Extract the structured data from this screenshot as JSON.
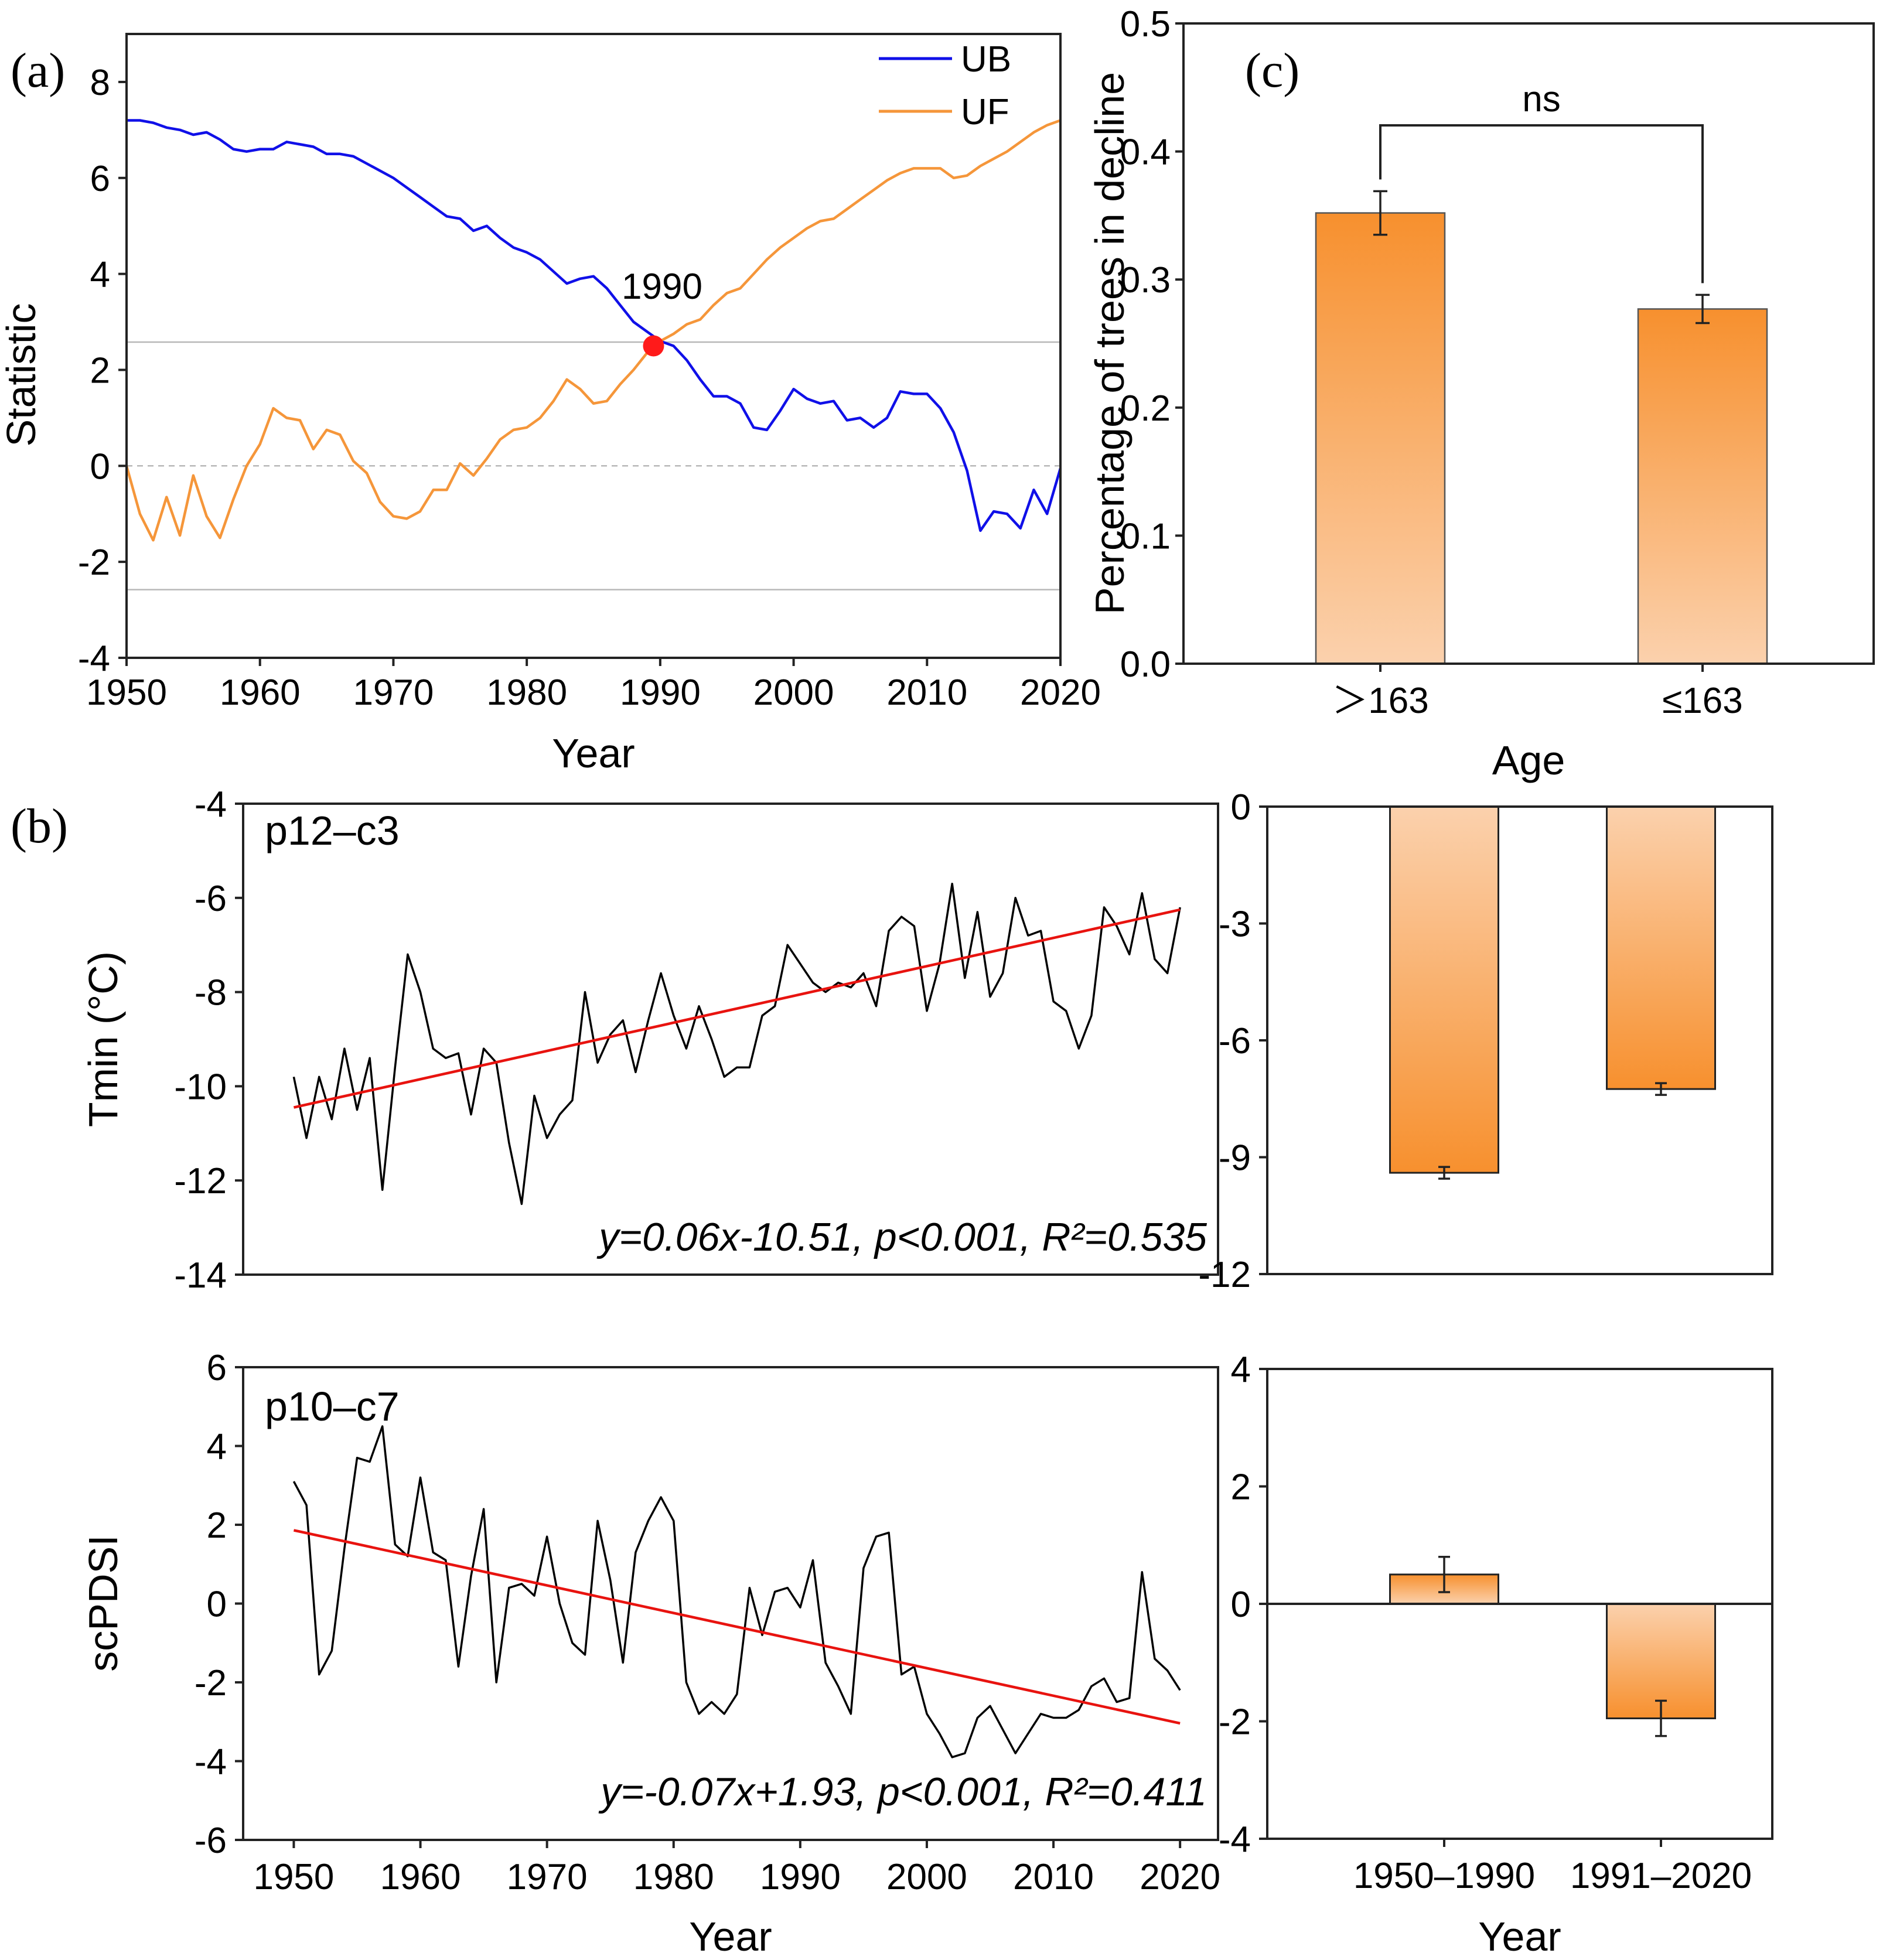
{
  "colors": {
    "ub": "#1010e8",
    "uf": "#f5963a",
    "trend": "#e8130f",
    "series": "#000000",
    "point": "#ff1a1a",
    "bar_dark": "#f7902e",
    "bar_light": "#fbd1ad"
  },
  "chart_data": [
    {
      "id": "a",
      "type": "line",
      "panel_label": "(a)",
      "xlabel": "Year",
      "ylabel": "Statistic",
      "xlim": [
        1950,
        2020
      ],
      "ylim": [
        -4,
        9
      ],
      "xticks": [
        1950,
        1960,
        1970,
        1980,
        1990,
        2000,
        2010,
        2020
      ],
      "yticks": [
        -4,
        -2,
        0,
        2,
        4,
        6,
        8
      ],
      "reference_lines": [
        2.58,
        0,
        -2.58
      ],
      "legend_position": "top-right",
      "annotation": {
        "text": "1990",
        "x": 1989.5,
        "y": 2.5
      },
      "series": [
        {
          "name": "UB",
          "x": [
            1950,
            1951,
            1952,
            1953,
            1954,
            1955,
            1956,
            1957,
            1958,
            1959,
            1960,
            1961,
            1962,
            1963,
            1964,
            1965,
            1966,
            1967,
            1968,
            1969,
            1970,
            1971,
            1972,
            1973,
            1974,
            1975,
            1976,
            1977,
            1978,
            1979,
            1980,
            1981,
            1982,
            1983,
            1984,
            1985,
            1986,
            1987,
            1988,
            1989,
            1990,
            1991,
            1992,
            1993,
            1994,
            1995,
            1996,
            1997,
            1998,
            1999,
            2000,
            2001,
            2002,
            2003,
            2004,
            2005,
            2006,
            2007,
            2008,
            2009,
            2010,
            2011,
            2012,
            2013,
            2014,
            2015,
            2016,
            2017,
            2018,
            2019,
            2020
          ],
          "values": [
            7.2,
            7.2,
            7.15,
            7.05,
            7.0,
            6.9,
            6.95,
            6.8,
            6.6,
            6.55,
            6.6,
            6.6,
            6.75,
            6.7,
            6.65,
            6.5,
            6.5,
            6.45,
            6.3,
            6.15,
            6.0,
            5.8,
            5.6,
            5.4,
            5.2,
            5.15,
            4.9,
            5.0,
            4.75,
            4.55,
            4.45,
            4.3,
            4.05,
            3.8,
            3.9,
            3.95,
            3.7,
            3.35,
            3.0,
            2.8,
            2.6,
            2.5,
            2.2,
            1.8,
            1.45,
            1.45,
            1.3,
            0.8,
            0.75,
            1.15,
            1.6,
            1.4,
            1.3,
            1.35,
            0.95,
            1.0,
            0.8,
            1.0,
            1.55,
            1.5,
            1.5,
            1.2,
            0.7,
            -0.1,
            -1.35,
            -0.95,
            -1.0,
            -1.3,
            -0.5,
            -1.0,
            -0.05
          ]
        },
        {
          "name": "UF",
          "x": [
            1950,
            1951,
            1952,
            1953,
            1954,
            1955,
            1956,
            1957,
            1958,
            1959,
            1960,
            1961,
            1962,
            1963,
            1964,
            1965,
            1966,
            1967,
            1968,
            1969,
            1970,
            1971,
            1972,
            1973,
            1974,
            1975,
            1976,
            1977,
            1978,
            1979,
            1980,
            1981,
            1982,
            1983,
            1984,
            1985,
            1986,
            1987,
            1988,
            1989,
            1990,
            1991,
            1992,
            1993,
            1994,
            1995,
            1996,
            1997,
            1998,
            1999,
            2000,
            2001,
            2002,
            2003,
            2004,
            2005,
            2006,
            2007,
            2008,
            2009,
            2010,
            2011,
            2012,
            2013,
            2014,
            2015,
            2016,
            2017,
            2018,
            2019,
            2020
          ],
          "values": [
            0,
            -1.0,
            -1.55,
            -0.65,
            -1.45,
            -0.2,
            -1.05,
            -1.5,
            -0.7,
            0.0,
            0.45,
            1.2,
            1.0,
            0.95,
            0.35,
            0.75,
            0.65,
            0.1,
            -0.15,
            -0.75,
            -1.05,
            -1.1,
            -0.95,
            -0.5,
            -0.5,
            0.05,
            -0.2,
            0.15,
            0.55,
            0.75,
            0.8,
            1.0,
            1.35,
            1.8,
            1.6,
            1.3,
            1.35,
            1.7,
            2.0,
            2.35,
            2.6,
            2.75,
            2.95,
            3.05,
            3.35,
            3.6,
            3.7,
            4.0,
            4.3,
            4.55,
            4.75,
            4.95,
            5.1,
            5.15,
            5.35,
            5.55,
            5.75,
            5.95,
            6.1,
            6.2,
            6.2,
            6.2,
            6.0,
            6.05,
            6.25,
            6.4,
            6.55,
            6.75,
            6.95,
            7.1,
            7.2
          ]
        }
      ]
    },
    {
      "id": "b-tmin",
      "type": "line",
      "panel_label": "(b)",
      "subplot_label": "p12–c3",
      "xlabel": "",
      "ylabel": "Tmin (°C)",
      "xlim": [
        1946,
        2023
      ],
      "ylim": [
        -14,
        -4
      ],
      "yticks": [
        -14,
        -12,
        -10,
        -8,
        -6,
        -4
      ],
      "trend_text": "y=0.06x-10.51, p<0.001, R²=0.535",
      "trend": {
        "slope": 0.06,
        "intercept": -10.51,
        "x_start": 1950,
        "x_end": 2020
      },
      "series": [
        {
          "name": "Tmin",
          "x": [
            1950,
            1951,
            1952,
            1953,
            1954,
            1955,
            1956,
            1957,
            1958,
            1959,
            1960,
            1961,
            1962,
            1963,
            1964,
            1965,
            1966,
            1967,
            1968,
            1969,
            1970,
            1971,
            1972,
            1973,
            1974,
            1975,
            1976,
            1977,
            1978,
            1979,
            1980,
            1981,
            1982,
            1983,
            1984,
            1985,
            1986,
            1987,
            1988,
            1989,
            1990,
            1991,
            1992,
            1993,
            1994,
            1995,
            1996,
            1997,
            1998,
            1999,
            2000,
            2001,
            2002,
            2003,
            2004,
            2005,
            2006,
            2007,
            2008,
            2009,
            2010,
            2011,
            2012,
            2013,
            2014,
            2015,
            2016,
            2017,
            2018,
            2019,
            2020
          ],
          "values": [
            -9.8,
            -11.1,
            -9.8,
            -10.7,
            -9.2,
            -10.5,
            -9.4,
            -12.2,
            -9.6,
            -7.2,
            -8.0,
            -9.2,
            -9.4,
            -9.3,
            -10.6,
            -9.2,
            -9.5,
            -11.2,
            -12.5,
            -10.2,
            -11.1,
            -10.6,
            -10.3,
            -8.0,
            -9.5,
            -8.9,
            -8.6,
            -9.7,
            -8.6,
            -7.6,
            -8.5,
            -9.2,
            -8.3,
            -9.0,
            -9.8,
            -9.6,
            -9.6,
            -8.5,
            -8.3,
            -7.0,
            -7.4,
            -7.8,
            -8.0,
            -7.8,
            -7.9,
            -7.6,
            -8.3,
            -6.7,
            -6.4,
            -6.6,
            -8.4,
            -7.4,
            -5.7,
            -7.7,
            -6.3,
            -8.1,
            -7.6,
            -6.0,
            -6.8,
            -6.7,
            -8.2,
            -8.4,
            -9.2,
            -8.5,
            -6.2,
            -6.6,
            -7.2,
            -5.9,
            -7.3,
            -7.6,
            -6.2
          ]
        }
      ]
    },
    {
      "id": "b-scpdsi",
      "type": "line",
      "subplot_label": "p10–c7",
      "xlabel": "Year",
      "ylabel": "scPDSI",
      "xlim": [
        1946,
        2023
      ],
      "ylim": [
        -6,
        6
      ],
      "xticks": [
        1950,
        1960,
        1970,
        1980,
        1990,
        2000,
        2010,
        2020
      ],
      "yticks": [
        -6,
        -4,
        -2,
        0,
        2,
        4,
        6
      ],
      "trend_text": "y=-0.07x+1.93, p<0.001, R²=0.411",
      "trend": {
        "slope": -0.07,
        "intercept": 1.93,
        "x_start": 1950,
        "x_end": 2020
      },
      "series": [
        {
          "name": "scPDSI",
          "x": [
            1950,
            1951,
            1952,
            1953,
            1954,
            1955,
            1956,
            1957,
            1958,
            1959,
            1960,
            1961,
            1962,
            1963,
            1964,
            1965,
            1966,
            1967,
            1968,
            1969,
            1970,
            1971,
            1972,
            1973,
            1974,
            1975,
            1976,
            1977,
            1978,
            1979,
            1980,
            1981,
            1982,
            1983,
            1984,
            1985,
            1986,
            1987,
            1988,
            1989,
            1990,
            1991,
            1992,
            1993,
            1994,
            1995,
            1996,
            1997,
            1998,
            1999,
            2000,
            2001,
            2002,
            2003,
            2004,
            2005,
            2006,
            2007,
            2008,
            2009,
            2010,
            2011,
            2012,
            2013,
            2014,
            2015,
            2016,
            2017,
            2018,
            2019,
            2020
          ],
          "values": [
            3.1,
            2.5,
            -1.8,
            -1.2,
            1.4,
            3.7,
            3.6,
            4.5,
            1.5,
            1.2,
            3.2,
            1.3,
            1.1,
            -1.6,
            0.7,
            2.4,
            -2.0,
            0.4,
            0.5,
            0.2,
            1.7,
            0.0,
            -1.0,
            -1.3,
            2.1,
            0.6,
            -1.5,
            1.3,
            2.1,
            2.7,
            2.1,
            -2.0,
            -2.8,
            -2.5,
            -2.8,
            -2.3,
            0.4,
            -0.8,
            0.3,
            0.4,
            -0.1,
            1.1,
            -1.5,
            -2.1,
            -2.8,
            0.9,
            1.7,
            1.8,
            -1.8,
            -1.6,
            -2.8,
            -3.3,
            -3.9,
            -3.8,
            -2.9,
            -2.6,
            -3.2,
            -3.8,
            -3.3,
            -2.8,
            -2.9,
            -2.9,
            -2.7,
            -2.1,
            -1.9,
            -2.5,
            -2.4,
            0.8,
            -1.4,
            -1.7,
            -2.2
          ]
        }
      ]
    },
    {
      "id": "b-tmin-bars",
      "type": "bar",
      "xlabel": "",
      "ylabel": "",
      "ylim": [
        -12,
        0
      ],
      "yticks": [
        -12,
        -9,
        -6,
        -3,
        0
      ],
      "categories": [
        "1950–1990",
        "1991–2020"
      ],
      "values": [
        -9.4,
        -7.25
      ],
      "errors": [
        0.15,
        0.15
      ]
    },
    {
      "id": "b-scpdsi-bars",
      "type": "bar",
      "xlabel": "Year",
      "ylabel": "",
      "ylim": [
        -4,
        4
      ],
      "yticks": [
        -4,
        -2,
        0,
        2,
        4
      ],
      "categories": [
        "1950–1990",
        "1991–2020"
      ],
      "values": [
        0.5,
        -1.95
      ],
      "errors": [
        0.3,
        0.3
      ]
    },
    {
      "id": "c",
      "type": "bar",
      "panel_label": "(c)",
      "xlabel": "Age",
      "ylabel": "Percentage of trees in decline",
      "ylim": [
        0,
        0.5
      ],
      "yticks": [
        "0.0",
        "0.1",
        "0.2",
        "0.3",
        "0.4",
        "0.5"
      ],
      "categories": [
        "＞163",
        "≤163"
      ],
      "values": [
        0.352,
        0.277
      ],
      "errors": [
        0.017,
        0.011
      ],
      "significance": "ns"
    }
  ]
}
